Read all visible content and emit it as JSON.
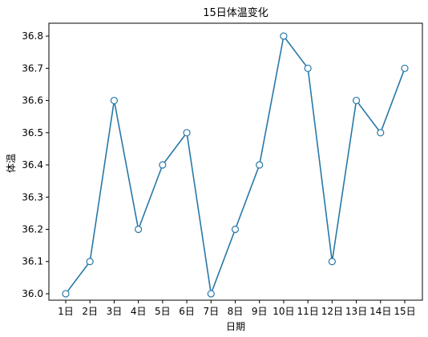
{
  "chart_data": {
    "type": "line",
    "title": "15日体温变化",
    "xlabel": "日期",
    "ylabel": "体温",
    "categories": [
      "1日",
      "2日",
      "3日",
      "4日",
      "5日",
      "6日",
      "7日",
      "8日",
      "9日",
      "10日",
      "11日",
      "12日",
      "13日",
      "14日",
      "15日"
    ],
    "series": [
      {
        "values": [
          36.0,
          36.1,
          36.6,
          36.2,
          36.4,
          36.5,
          36.0,
          36.2,
          36.4,
          36.8,
          36.7,
          36.1,
          36.6,
          36.5,
          36.7
        ]
      }
    ],
    "yticks": [
      "36.0",
      "36.1",
      "36.2",
      "36.3",
      "36.4",
      "36.5",
      "36.6",
      "36.7",
      "36.8"
    ],
    "ylim": [
      35.98,
      36.84
    ],
    "grid": false,
    "marker": "hollow-circle",
    "line_color": "#2878a8",
    "marker_face_color": "#ffffff"
  }
}
